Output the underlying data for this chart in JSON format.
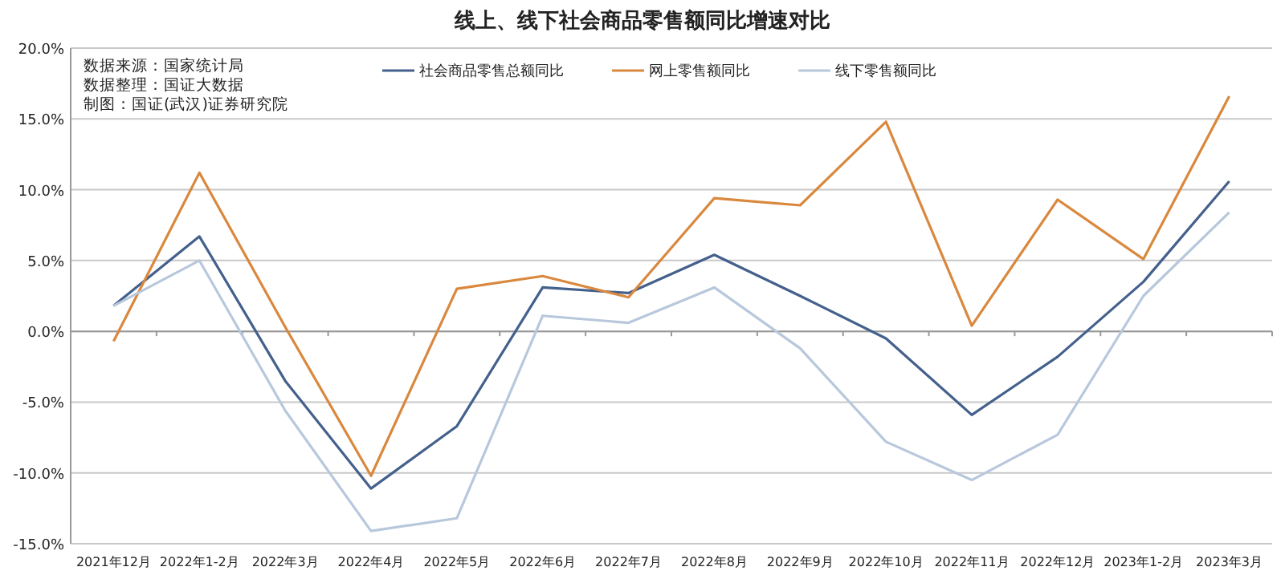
{
  "chart_data": {
    "type": "line",
    "title": "线上、线下社会商品零售额同比增速对比",
    "categories": [
      "2021年12月",
      "2022年1-2月",
      "2022年3月",
      "2022年4月",
      "2022年5月",
      "2022年6月",
      "2022年7月",
      "2022年8月",
      "2022年9月",
      "2022年10月",
      "2022年11月",
      "2022年12月",
      "2023年1-2月",
      "2023年3月"
    ],
    "series": [
      {
        "name": "社会商品零售总额同比",
        "color": "#44608c",
        "values": [
          1.8,
          6.7,
          -3.5,
          -11.1,
          -6.7,
          3.1,
          2.7,
          5.4,
          2.5,
          -0.5,
          -5.9,
          -1.8,
          3.5,
          10.6
        ]
      },
      {
        "name": "网上零售额同比",
        "color": "#d9883e",
        "values": [
          -0.7,
          11.2,
          0.3,
          -10.2,
          3.0,
          3.9,
          2.4,
          9.4,
          8.9,
          14.8,
          0.4,
          9.3,
          5.1,
          16.6
        ]
      },
      {
        "name": "线下零售额同比",
        "color": "#b8c8dc",
        "values": [
          1.8,
          5.0,
          -5.6,
          -14.1,
          -13.2,
          1.1,
          0.6,
          3.1,
          -1.2,
          -7.8,
          -10.5,
          -7.3,
          2.5,
          8.4
        ]
      }
    ],
    "ylim": [
      -15,
      20
    ],
    "yticks": [
      {
        "value": -15,
        "label": "-15.0%"
      },
      {
        "value": -10,
        "label": "-10.0%"
      },
      {
        "value": -5,
        "label": "-5.0%"
      },
      {
        "value": 0,
        "label": "0.0%"
      },
      {
        "value": 5,
        "label": "5.0%"
      },
      {
        "value": 10,
        "label": "10.0%"
      },
      {
        "value": 15,
        "label": "15.0%"
      },
      {
        "value": 20,
        "label": "20.0%"
      }
    ],
    "grid": "y",
    "legend": "top",
    "marker": "none",
    "line_style": "solid",
    "annotations": [
      "数据来源：国家统计局",
      "数据整理：国证大数据",
      "制图：国证(武汉)证券研究院"
    ]
  }
}
